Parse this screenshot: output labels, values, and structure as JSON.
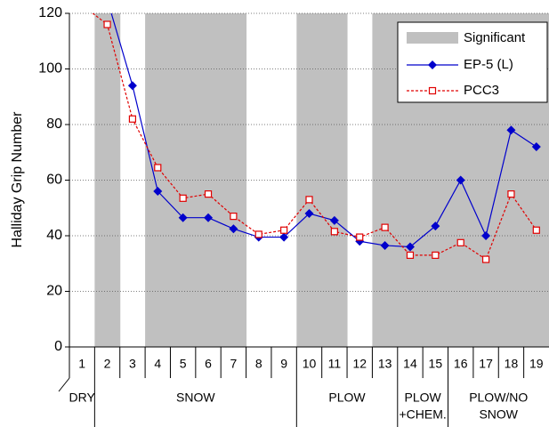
{
  "chart_data": {
    "type": "line",
    "y_label": "Halliday Grip Number",
    "categories": [
      "1",
      "2",
      "3",
      "4",
      "5",
      "6",
      "7",
      "8",
      "9",
      "10",
      "11",
      "12",
      "13",
      "14",
      "15",
      "16",
      "17",
      "18",
      "19"
    ],
    "ylim": [
      0,
      120
    ],
    "yticks": [
      0,
      20,
      40,
      60,
      80,
      100,
      120
    ],
    "grid": true,
    "legend": "upper right",
    "shaded": {
      "name": "Significant",
      "color": "#c0c0c0",
      "categories": [
        "2",
        "4",
        "5",
        "6",
        "7",
        "10",
        "11",
        "13",
        "14",
        "15",
        "16",
        "17",
        "18",
        "19"
      ]
    },
    "series": [
      {
        "name": "EP-5 (L)",
        "color": "#0000cc",
        "marker": "diamond",
        "line": "solid",
        "values": [
          null,
          125,
          94,
          56,
          46.5,
          46.5,
          42.5,
          39.5,
          39.5,
          48,
          45.5,
          38,
          36.5,
          36,
          43.5,
          60,
          40,
          78,
          72
        ]
      },
      {
        "name": "PCC3",
        "color": "#e00000",
        "marker": "square",
        "line": "dotted",
        "values": [
          123,
          116,
          82,
          64.5,
          53.5,
          55,
          47,
          40.5,
          42,
          53,
          41.5,
          39.5,
          43,
          33,
          33,
          37.5,
          31.5,
          55,
          42
        ]
      }
    ],
    "groups": [
      {
        "lines": [
          "DRY"
        ],
        "from": "1",
        "to": "1"
      },
      {
        "lines": [
          "SNOW"
        ],
        "from": "2",
        "to": "9"
      },
      {
        "lines": [
          "PLOW"
        ],
        "from": "10",
        "to": "13"
      },
      {
        "lines": [
          "PLOW",
          "+CHEM."
        ],
        "from": "14",
        "to": "15"
      },
      {
        "lines": [
          "PLOW/NO",
          "SNOW"
        ],
        "from": "16",
        "to": "19"
      }
    ]
  }
}
